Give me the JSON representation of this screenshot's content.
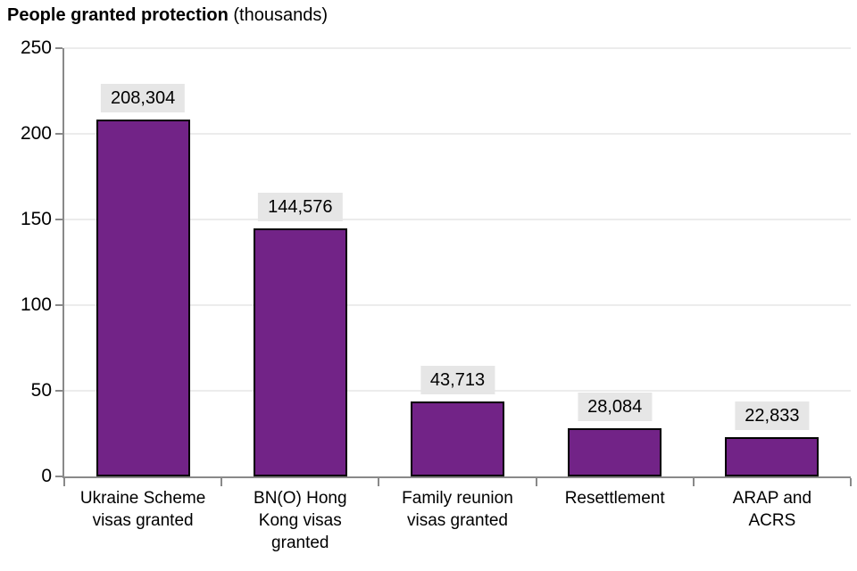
{
  "title": {
    "main": "People granted protection",
    "suffix": " (thousands)"
  },
  "chart_data": {
    "type": "bar",
    "title": "People granted protection (thousands)",
    "xlabel": "",
    "ylabel": "People granted protection (thousands)",
    "categories": [
      "Ukraine Scheme visas granted",
      "BN(O) Hong Kong visas granted",
      "Family reunion visas granted",
      "Resettlement",
      "ARAP and ACRS"
    ],
    "category_label_lines": [
      [
        "Ukraine Scheme",
        "visas granted"
      ],
      [
        "BN(O) Hong",
        "Kong visas",
        "granted"
      ],
      [
        "Family reunion",
        "visas granted"
      ],
      [
        "Resettlement"
      ],
      [
        "ARAP and",
        "ACRS"
      ]
    ],
    "values": [
      208304,
      144576,
      43713,
      28084,
      22833
    ],
    "values_thousands": [
      208.304,
      144.576,
      43.713,
      28.084,
      22.833
    ],
    "data_labels": [
      "208,304",
      "144,576",
      "43,713",
      "28,084",
      "22,833"
    ],
    "ylim": [
      0,
      250
    ],
    "yticks": [
      0,
      50,
      100,
      150,
      200,
      250
    ],
    "grid": "horizontal",
    "legend": "none",
    "colors": {
      "bar_fill": "#722387",
      "bar_border": "#000000",
      "data_label_bg": "#e6e6e6",
      "axis": "#898989",
      "gridline": "#ececec",
      "text": "#000000"
    }
  }
}
